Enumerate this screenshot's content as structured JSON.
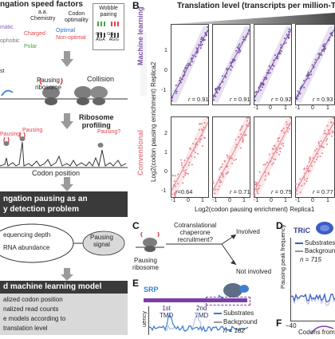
{
  "panelA": {
    "title": "ngation speed factors",
    "col1_label_line1": "a.a.",
    "col1_label_line2": "Chemistry",
    "col1_items": [
      "matic",
      "Charged",
      "ophobic",
      "Polar"
    ],
    "col2_label_line1": "Codon",
    "col2_label_line2": "optimality",
    "col2_items": [
      "Optimal",
      "Non-optimal"
    ],
    "col3_label_line1": "Wobble",
    "col3_label_line2": "pairing",
    "wobble_codes": [
      "GG",
      "AGA",
      "AGG"
    ],
    "pausing_ribosome": "Pausing\nribosome",
    "st_label": "st",
    "collision": "Collision",
    "ribosome_profiling": "Ribosome\nprofiling",
    "pausing_1": "Pausing",
    "pausing_2": "Pausing",
    "pausing_q": "Pausing?",
    "codon_position": "Codon position",
    "problem_line1": "ngation pausing as an",
    "problem_line2": "y detection problem",
    "sequencing_depth": "equencing depth",
    "rna_abundance": "RNA abundance",
    "pausing_signal": "Pausing\nsignal",
    "model_box": "d machine learning model",
    "bullets": [
      "alized codon position",
      "nalized read counts",
      "e models according to",
      "translation level"
    ]
  },
  "panelB": {
    "letter": "B",
    "header": "Translation level (transcripts per million-TPM",
    "row1_label": "Machine learning",
    "row2_label": "Conventional",
    "ylabel": "Log2(codon pausing enrichment) Replica2",
    "xlabel": "Log2(codon pausing enrichment) Replica1",
    "row1_r": [
      "= 0.91",
      "= 0.91",
      "= 0.92",
      "= 0.93"
    ],
    "row2_r": [
      "r=0.64",
      "= 0.71",
      "= 0.75",
      "= 0.77"
    ],
    "row1_xticks": [
      "-1",
      "0",
      "1",
      "-1",
      "0",
      "1",
      "-1",
      "0",
      "1"
    ],
    "row1_yticks": [
      "1",
      "0",
      "-1"
    ],
    "row2_yticks": [
      "2",
      "1",
      "0",
      "-1"
    ],
    "row2_xticks": [
      "-1",
      "0",
      "1",
      "-1",
      "0",
      "1",
      "-1",
      "0",
      "1",
      "-1",
      "0",
      "1"
    ],
    "colors": {
      "ml": "#7b52a8",
      "conv": "#e5818c"
    }
  },
  "panelC": {
    "letter": "C",
    "pausing_ribosome": "Pausing\nribosome",
    "question": "Cotranslational\nchaperone\nrecruitment?",
    "involved": "Involved",
    "not_involved": "Not involved"
  },
  "panelD": {
    "letter": "D",
    "tric": "TRiC",
    "ylabel": "Pausing peak frequency",
    "legend_substrates": "Substrates",
    "legend_background": "Background",
    "n_label": "n = 715",
    "xtick": "−40",
    "xlabel": "Codons from TRi"
  },
  "panelE": {
    "letter": "E",
    "srp": "SRP",
    "tmd1": "1st\nTMD",
    "tmd2": "2nd\nTMD",
    "legend_substrates": "Substrates",
    "legend_background": "Background",
    "n_label": "n = 182",
    "ylabel_frag": "uency"
  },
  "panelF": {
    "letter": "F"
  }
}
